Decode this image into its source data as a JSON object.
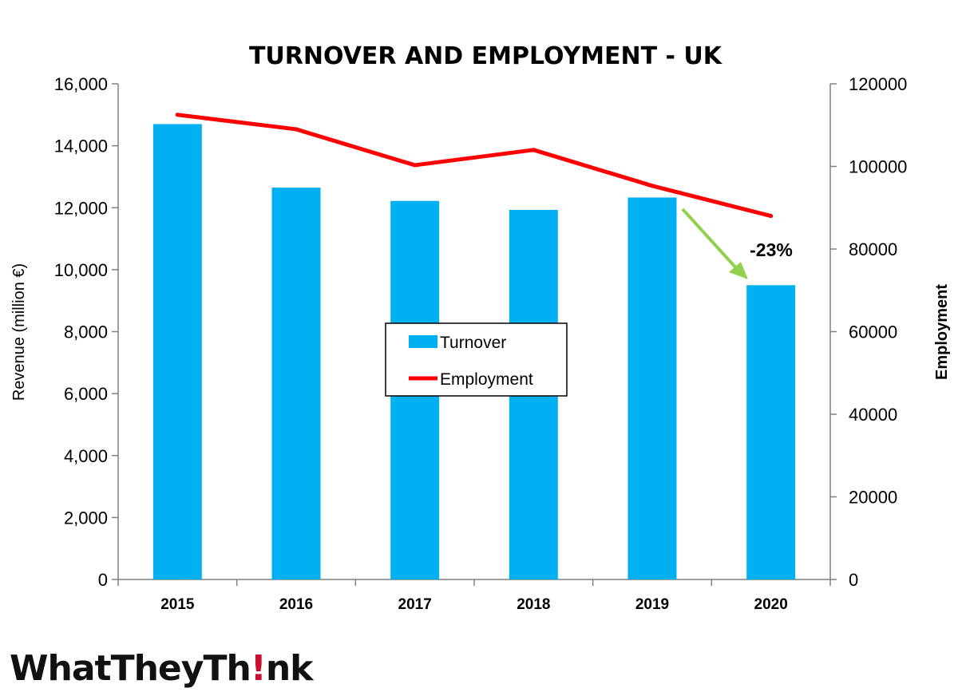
{
  "chart_data": {
    "type": "bar",
    "title": "TURNOVER AND EMPLOYMENT - UK",
    "categories": [
      "2015",
      "2016",
      "2017",
      "2018",
      "2019",
      "2020"
    ],
    "series": [
      {
        "name": "Turnover",
        "type": "bar",
        "axis": "left",
        "color": "#00b0f0",
        "values": [
          14700,
          12650,
          12220,
          11930,
          12330,
          9500
        ]
      },
      {
        "name": "Employment",
        "type": "line",
        "axis": "right",
        "color": "#ff0000",
        "values": [
          112500,
          109000,
          100300,
          104000,
          95300,
          88000
        ]
      }
    ],
    "ylabel": "Revenue (million €)",
    "y2label": "Employment",
    "ylim": [
      0,
      16000
    ],
    "y2lim": [
      0,
      120000
    ],
    "yticks": [
      "0",
      "2,000",
      "4,000",
      "6,000",
      "8,000",
      "10,000",
      "12,000",
      "14,000",
      "16,000"
    ],
    "y2ticks": [
      "0",
      "20000",
      "40000",
      "60000",
      "80000",
      "100000",
      "120000"
    ],
    "annotation": {
      "text": "-23%",
      "arrow_color": "#92d050"
    },
    "legend_placement": "center",
    "grid": false
  },
  "logo": {
    "text_before": "WhatTheyTh",
    "text_after": "nk",
    "accent_color": "#c8102e"
  }
}
